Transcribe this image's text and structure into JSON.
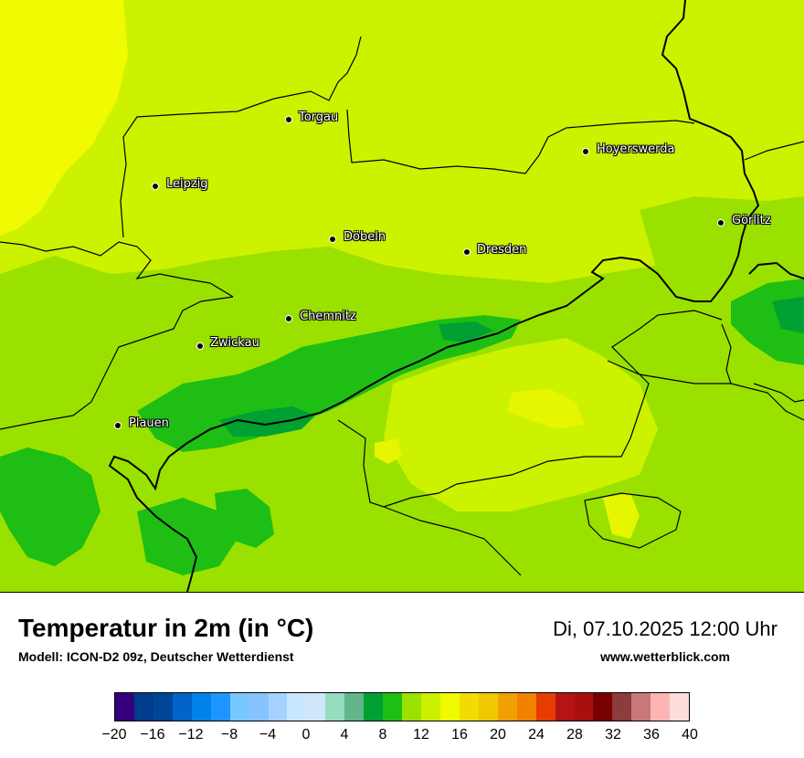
{
  "map": {
    "background_color": "#ccf200",
    "cities": [
      {
        "id": "torgau",
        "name": "Torgau"
      },
      {
        "id": "hoyerswerda",
        "name": "Hoyerswerda"
      },
      {
        "id": "leipzig",
        "name": "Leipzig"
      },
      {
        "id": "goerlitz",
        "name": "Görlitz"
      },
      {
        "id": "doebeln",
        "name": "Döbeln"
      },
      {
        "id": "dresden",
        "name": "Dresden"
      },
      {
        "id": "chemnitz",
        "name": "Chemnitz"
      },
      {
        "id": "zwickau",
        "name": "Zwickau"
      },
      {
        "id": "plauen",
        "name": "Plauen"
      }
    ]
  },
  "footer": {
    "title": "Temperatur in 2m (in °C)",
    "subtitle": "Modell: ICON-D2 09z, Deutscher Wetterdienst",
    "datetime": "Di, 07.10.2025 12:00 Uhr",
    "website": "www.wetterblick.com"
  },
  "legend": {
    "min": -20,
    "max": 40,
    "step": 2,
    "tick_labels": [
      "−20",
      "−16",
      "−12",
      "−8",
      "−4",
      "0",
      "4",
      "8",
      "12",
      "16",
      "20",
      "24",
      "28",
      "32",
      "36",
      "40"
    ],
    "colors": [
      "#35007d",
      "#003c8c",
      "#004696",
      "#0064c8",
      "#0082eb",
      "#1e96ff",
      "#78c8ff",
      "#87c3ff",
      "#a5d2ff",
      "#c8e6ff",
      "#d2e6fa",
      "#96dcbe",
      "#64b48c",
      "#00a032",
      "#1ebe14",
      "#9be100",
      "#cdf000",
      "#f0fa00",
      "#f0dc00",
      "#f0c800",
      "#f0a000",
      "#f08200",
      "#e63c00",
      "#b41414",
      "#aa0f0f",
      "#780000",
      "#8c3c3c",
      "#c87878",
      "#ffb4b4",
      "#ffdcdc"
    ]
  }
}
